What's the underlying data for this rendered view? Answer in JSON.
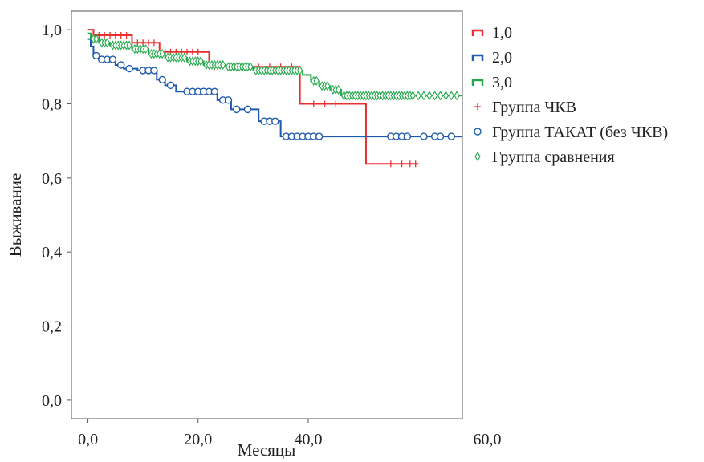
{
  "chart_data": {
    "type": "line",
    "subtype": "kaplan-meier",
    "title": "",
    "xlabel": "Месяцы",
    "ylabel": "Выживание",
    "xlim": [
      -3,
      68
    ],
    "ylim": [
      -0.05,
      1.05
    ],
    "x_ticks": [
      0,
      20,
      40,
      60
    ],
    "x_tick_labels": [
      "0,0",
      "20,0",
      "40,0",
      "60,0"
    ],
    "y_ticks": [
      0,
      0.2,
      0.4,
      0.6,
      0.8,
      1.0
    ],
    "y_tick_labels": [
      "0,0",
      "0,2",
      "0,4",
      "0,6",
      "0,8",
      "1,0"
    ],
    "grid": false,
    "legend_position": "right",
    "series": [
      {
        "name": "1,0",
        "color": "#e8312f",
        "marker": "plus",
        "steps": [
          [
            0,
            1.0
          ],
          [
            1,
            0.985
          ],
          [
            8,
            0.965
          ],
          [
            13,
            0.94
          ],
          [
            22,
            0.9
          ],
          [
            38.5,
            0.8
          ],
          [
            50.5,
            0.638
          ],
          [
            60,
            0.638
          ]
        ],
        "censored": [
          [
            2,
            0.985
          ],
          [
            3,
            0.985
          ],
          [
            4,
            0.985
          ],
          [
            5,
            0.985
          ],
          [
            6,
            0.985
          ],
          [
            7,
            0.985
          ],
          [
            9,
            0.965
          ],
          [
            10,
            0.965
          ],
          [
            11,
            0.965
          ],
          [
            12,
            0.965
          ],
          [
            14,
            0.94
          ],
          [
            15,
            0.94
          ],
          [
            16,
            0.94
          ],
          [
            17,
            0.94
          ],
          [
            18,
            0.94
          ],
          [
            19,
            0.94
          ],
          [
            20,
            0.94
          ],
          [
            23,
            0.9
          ],
          [
            26,
            0.9
          ],
          [
            28,
            0.9
          ],
          [
            31,
            0.9
          ],
          [
            33,
            0.9
          ],
          [
            35,
            0.9
          ],
          [
            37,
            0.9
          ],
          [
            41,
            0.8
          ],
          [
            43,
            0.8
          ],
          [
            45,
            0.8
          ],
          [
            55,
            0.638
          ],
          [
            57,
            0.638
          ],
          [
            58.5,
            0.638
          ],
          [
            59.5,
            0.638
          ]
        ]
      },
      {
        "name": "2,0",
        "color": "#1f5aad",
        "marker": "circle",
        "steps": [
          [
            0,
            0.975
          ],
          [
            0.5,
            0.955
          ],
          [
            1,
            0.93
          ],
          [
            2,
            0.92
          ],
          [
            5,
            0.905
          ],
          [
            6.5,
            0.895
          ],
          [
            9,
            0.89
          ],
          [
            12.5,
            0.865
          ],
          [
            14,
            0.85
          ],
          [
            16,
            0.833
          ],
          [
            23.5,
            0.81
          ],
          [
            26,
            0.785
          ],
          [
            31,
            0.753
          ],
          [
            35,
            0.712
          ],
          [
            68,
            0.712
          ]
        ],
        "censored": [
          [
            1.5,
            0.93
          ],
          [
            2.5,
            0.92
          ],
          [
            3.5,
            0.92
          ],
          [
            4.5,
            0.92
          ],
          [
            6,
            0.905
          ],
          [
            7.5,
            0.895
          ],
          [
            10,
            0.89
          ],
          [
            11,
            0.89
          ],
          [
            12,
            0.89
          ],
          [
            13.5,
            0.865
          ],
          [
            15,
            0.85
          ],
          [
            18,
            0.833
          ],
          [
            19,
            0.833
          ],
          [
            20,
            0.833
          ],
          [
            21,
            0.833
          ],
          [
            22,
            0.833
          ],
          [
            23,
            0.833
          ],
          [
            24.5,
            0.81
          ],
          [
            25.5,
            0.81
          ],
          [
            27,
            0.785
          ],
          [
            29,
            0.785
          ],
          [
            32,
            0.753
          ],
          [
            33,
            0.753
          ],
          [
            34,
            0.753
          ],
          [
            36,
            0.712
          ],
          [
            37,
            0.712
          ],
          [
            38,
            0.712
          ],
          [
            39,
            0.712
          ],
          [
            40,
            0.712
          ],
          [
            41,
            0.712
          ],
          [
            42,
            0.712
          ],
          [
            55,
            0.712
          ],
          [
            56,
            0.712
          ],
          [
            57,
            0.712
          ],
          [
            58,
            0.712
          ],
          [
            61,
            0.712
          ],
          [
            63,
            0.712
          ],
          [
            64,
            0.712
          ],
          [
            66,
            0.712
          ]
        ]
      },
      {
        "name": "3,0",
        "color": "#23a84a",
        "marker": "diamond",
        "steps": [
          [
            0,
            0.99
          ],
          [
            0.5,
            0.975
          ],
          [
            2,
            0.965
          ],
          [
            4,
            0.958
          ],
          [
            8,
            0.948
          ],
          [
            11,
            0.935
          ],
          [
            14,
            0.925
          ],
          [
            18,
            0.915
          ],
          [
            21,
            0.905
          ],
          [
            25,
            0.9
          ],
          [
            30,
            0.89
          ],
          [
            39,
            0.878
          ],
          [
            40.5,
            0.862
          ],
          [
            42,
            0.848
          ],
          [
            44,
            0.838
          ],
          [
            46,
            0.822
          ],
          [
            68,
            0.822
          ]
        ],
        "censored": [
          [
            1,
            0.975
          ],
          [
            1.5,
            0.975
          ],
          [
            2.5,
            0.965
          ],
          [
            3,
            0.965
          ],
          [
            3.5,
            0.965
          ],
          [
            4.5,
            0.958
          ],
          [
            5,
            0.958
          ],
          [
            5.5,
            0.958
          ],
          [
            6,
            0.958
          ],
          [
            6.5,
            0.958
          ],
          [
            7,
            0.958
          ],
          [
            7.5,
            0.958
          ],
          [
            8.5,
            0.948
          ],
          [
            9,
            0.948
          ],
          [
            9.5,
            0.948
          ],
          [
            10,
            0.948
          ],
          [
            10.5,
            0.948
          ],
          [
            11.5,
            0.935
          ],
          [
            12,
            0.935
          ],
          [
            12.5,
            0.935
          ],
          [
            13,
            0.935
          ],
          [
            13.5,
            0.935
          ],
          [
            14.5,
            0.925
          ],
          [
            15,
            0.925
          ],
          [
            15.5,
            0.925
          ],
          [
            16,
            0.925
          ],
          [
            16.5,
            0.925
          ],
          [
            17,
            0.925
          ],
          [
            17.5,
            0.925
          ],
          [
            18.5,
            0.915
          ],
          [
            19,
            0.915
          ],
          [
            19.5,
            0.915
          ],
          [
            20,
            0.915
          ],
          [
            20.5,
            0.915
          ],
          [
            21.5,
            0.905
          ],
          [
            22,
            0.905
          ],
          [
            22.5,
            0.905
          ],
          [
            23,
            0.905
          ],
          [
            23.5,
            0.905
          ],
          [
            24,
            0.905
          ],
          [
            24.5,
            0.905
          ],
          [
            25.5,
            0.9
          ],
          [
            26,
            0.9
          ],
          [
            26.5,
            0.9
          ],
          [
            27,
            0.9
          ],
          [
            27.5,
            0.9
          ],
          [
            28,
            0.9
          ],
          [
            28.5,
            0.9
          ],
          [
            29,
            0.9
          ],
          [
            29.5,
            0.9
          ],
          [
            30.5,
            0.89
          ],
          [
            31,
            0.89
          ],
          [
            31.5,
            0.89
          ],
          [
            32,
            0.89
          ],
          [
            32.5,
            0.89
          ],
          [
            33,
            0.89
          ],
          [
            33.5,
            0.89
          ],
          [
            34,
            0.89
          ],
          [
            34.5,
            0.89
          ],
          [
            35,
            0.89
          ],
          [
            35.5,
            0.89
          ],
          [
            36,
            0.89
          ],
          [
            36.5,
            0.89
          ],
          [
            37,
            0.89
          ],
          [
            37.5,
            0.89
          ],
          [
            38,
            0.89
          ],
          [
            38.5,
            0.89
          ],
          [
            41,
            0.862
          ],
          [
            41.5,
            0.862
          ],
          [
            42.5,
            0.848
          ],
          [
            43,
            0.848
          ],
          [
            43.5,
            0.848
          ],
          [
            44.5,
            0.838
          ],
          [
            45,
            0.838
          ],
          [
            45.5,
            0.838
          ],
          [
            46.5,
            0.822
          ],
          [
            47,
            0.822
          ],
          [
            47.5,
            0.822
          ],
          [
            48,
            0.822
          ],
          [
            48.5,
            0.822
          ],
          [
            49,
            0.822
          ],
          [
            49.5,
            0.822
          ],
          [
            50,
            0.822
          ],
          [
            50.5,
            0.822
          ],
          [
            51,
            0.822
          ],
          [
            51.5,
            0.822
          ],
          [
            52,
            0.822
          ],
          [
            52.5,
            0.822
          ],
          [
            53,
            0.822
          ],
          [
            53.5,
            0.822
          ],
          [
            54,
            0.822
          ],
          [
            54.5,
            0.822
          ],
          [
            55,
            0.822
          ],
          [
            55.5,
            0.822
          ],
          [
            56,
            0.822
          ],
          [
            56.5,
            0.822
          ],
          [
            57,
            0.822
          ],
          [
            57.5,
            0.822
          ],
          [
            58,
            0.822
          ],
          [
            58.5,
            0.822
          ],
          [
            59,
            0.822
          ],
          [
            60,
            0.822
          ],
          [
            61,
            0.822
          ],
          [
            62,
            0.822
          ],
          [
            63,
            0.822
          ],
          [
            64,
            0.822
          ],
          [
            65,
            0.822
          ],
          [
            66,
            0.822
          ],
          [
            67,
            0.822
          ]
        ]
      }
    ],
    "legend": [
      {
        "kind": "step",
        "label": "1,0",
        "color": "#e8312f"
      },
      {
        "kind": "step",
        "label": "2,0",
        "color": "#1f5aad"
      },
      {
        "kind": "step",
        "label": "3,0",
        "color": "#23a84a"
      },
      {
        "kind": "marker",
        "marker": "plus",
        "label": "Группа ЧКВ",
        "color": "#e8312f"
      },
      {
        "kind": "marker",
        "marker": "circle",
        "label": "Группа ТАКАТ (без ЧКВ)",
        "color": "#1f5aad"
      },
      {
        "kind": "marker",
        "marker": "diamond",
        "label": "Группа сравнения",
        "color": "#23a84a"
      }
    ]
  }
}
